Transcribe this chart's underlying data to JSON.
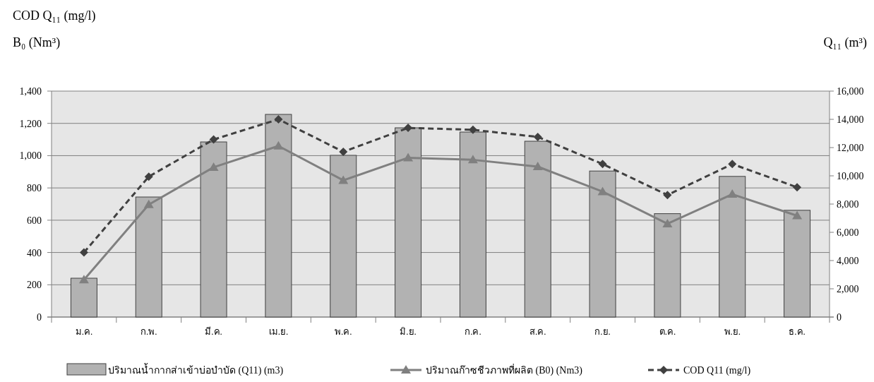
{
  "chart_data": {
    "type": "bar",
    "ylabel": "COD Q₁₁ (mg/l)\nB₀ (Nm³)",
    "y2label": "Q₁₁ (m³)",
    "categories": [
      "ม.ค.",
      "ก.พ.",
      "มี.ค.",
      "เม.ย.",
      "พ.ค.",
      "มิ.ย.",
      "ก.ค.",
      "ส.ค.",
      "ก.ย.",
      "ต.ค.",
      "พ.ย.",
      "ธ.ค."
    ],
    "series": [
      {
        "name": "ปริมาณน้ำกากส่าเข้าบ่อบำบัด  (Q11) (m3)",
        "axis": "y2",
        "color": "#b2b2b2",
        "values": [
          2750,
          8500,
          12400,
          14350,
          11450,
          13400,
          13100,
          12450,
          10340,
          7320,
          9960,
          7560
        ]
      },
      {
        "type": "line",
        "name": "ปริมาณก๊าซชีวภาพที่ผลิต  (B0) (Nm3)",
        "color": "#808080",
        "marker": "triangle",
        "line_style": "solid",
        "values": [
          231,
          697,
          928,
          1060,
          847,
          987,
          974,
          932,
          777,
          578,
          761,
          628
        ]
      },
      {
        "type": "line",
        "name": "COD Q11 (mg/l)",
        "color": "#404040",
        "marker": "diamond",
        "line_style": "dashed",
        "values": [
          400,
          870,
          1100,
          1225,
          1024,
          1172,
          1160,
          1116,
          948,
          756,
          948,
          804
        ]
      }
    ],
    "ylim": [
      0,
      1400
    ],
    "yticks": [
      0,
      200,
      400,
      600,
      800,
      {
        "value": 1000,
        "label": "1,000"
      },
      {
        "value": 1200,
        "label": "1,200"
      },
      {
        "value": 1400,
        "label": "1,400"
      }
    ],
    "y2lim": [
      0,
      16000
    ],
    "y2ticks": [
      0,
      {
        "value": 2000,
        "label": "2,000"
      },
      {
        "value": 4000,
        "label": "4,000"
      },
      {
        "value": 6000,
        "label": "6,000"
      },
      {
        "value": 8000,
        "label": "8,000"
      },
      {
        "value": 10000,
        "label": "10,000"
      },
      {
        "value": 12000,
        "label": "12,000"
      },
      {
        "value": 14000,
        "label": "14,000"
      },
      {
        "value": 16000,
        "label": "16,000"
      }
    ],
    "grid": "y",
    "legend": "bottom"
  }
}
